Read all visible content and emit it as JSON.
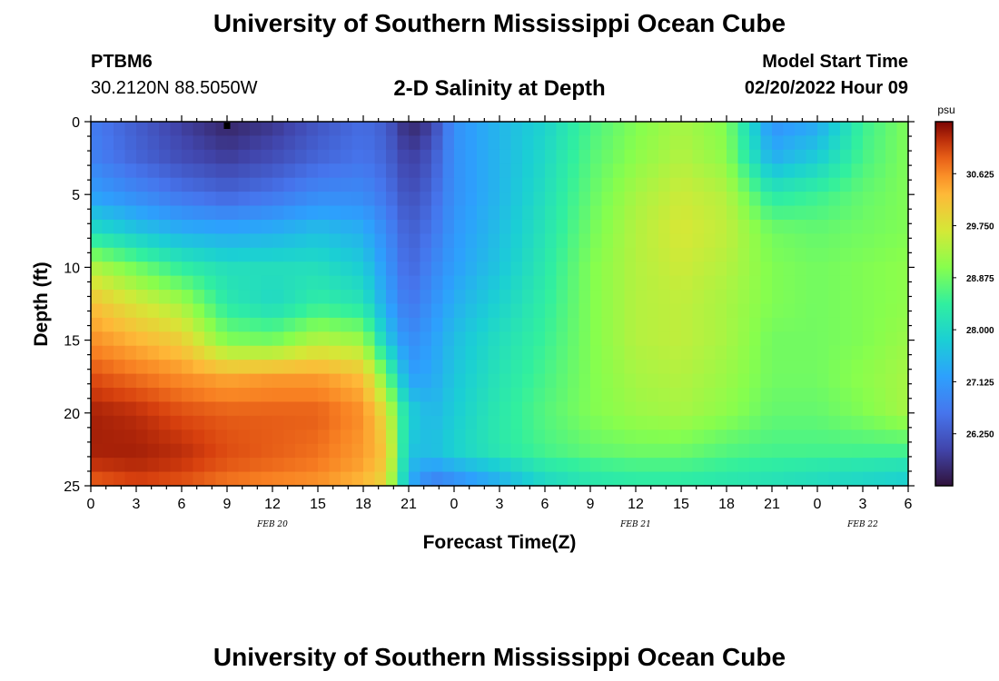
{
  "header": {
    "title": "University of Southern Mississippi Ocean Cube",
    "station_id": "PTBM6",
    "station_coords": "30.2120N  88.5050W",
    "chart_title": "2-D Salinity at Depth",
    "model_start_label": "Model Start Time",
    "model_start_value": "02/20/2022 Hour 09"
  },
  "footer": {
    "title": "University of Southern Mississippi Ocean Cube"
  },
  "chart_data": {
    "type": "heatmap",
    "title": "2-D Salinity at Depth",
    "xlabel": "Forecast Time(Z)",
    "ylabel": "Depth (ft)",
    "x_range_hours": [
      0,
      54
    ],
    "y_range": [
      0,
      25
    ],
    "x_ticks": [
      {
        "h": 0,
        "label": "0"
      },
      {
        "h": 3,
        "label": "3"
      },
      {
        "h": 6,
        "label": "6"
      },
      {
        "h": 9,
        "label": "9"
      },
      {
        "h": 12,
        "label": "12"
      },
      {
        "h": 15,
        "label": "15"
      },
      {
        "h": 18,
        "label": "18"
      },
      {
        "h": 21,
        "label": "21"
      },
      {
        "h": 24,
        "label": "0"
      },
      {
        "h": 27,
        "label": "3"
      },
      {
        "h": 30,
        "label": "6"
      },
      {
        "h": 33,
        "label": "9"
      },
      {
        "h": 36,
        "label": "12"
      },
      {
        "h": 39,
        "label": "15"
      },
      {
        "h": 42,
        "label": "18"
      },
      {
        "h": 45,
        "label": "21"
      },
      {
        "h": 48,
        "label": "0"
      },
      {
        "h": 51,
        "label": "3"
      },
      {
        "h": 54,
        "label": "6"
      }
    ],
    "date_labels": [
      {
        "h": 12,
        "label": "FEB 20"
      },
      {
        "h": 36,
        "label": "FEB 21"
      },
      {
        "h": 51,
        "label": "FEB 22"
      }
    ],
    "y_ticks": [
      0,
      5,
      10,
      15,
      20,
      25
    ],
    "marker": {
      "h": 9,
      "depth": 0
    },
    "colorbar": {
      "unit": "psu",
      "min": 25.375,
      "max": 31.5,
      "ticks": [
        "30.625",
        "29.750",
        "28.875",
        "28.000",
        "27.125",
        "26.250"
      ]
    },
    "salinity_psu": {
      "x_hours": [
        0,
        3,
        6,
        9,
        12,
        15,
        18,
        19.5,
        21,
        22.5,
        24,
        27,
        30,
        33,
        36,
        39,
        42,
        45,
        48,
        51,
        54
      ],
      "depths_ft": [
        0,
        2.5,
        5,
        7.5,
        10,
        12.5,
        15,
        17.5,
        20,
        22.5,
        24,
        25
      ],
      "rows": [
        [
          26.7,
          26.3,
          25.9,
          25.6,
          25.8,
          26.2,
          26.5,
          26.3,
          25.6,
          25.9,
          27.0,
          27.5,
          27.9,
          28.6,
          29.0,
          29.3,
          29.0,
          27.0,
          27.3,
          28.5,
          29.0
        ],
        [
          26.8,
          26.4,
          26.1,
          25.9,
          26.1,
          26.4,
          26.6,
          26.4,
          25.9,
          26.2,
          27.0,
          27.5,
          28.0,
          28.7,
          29.1,
          29.4,
          29.1,
          27.4,
          27.8,
          28.6,
          29.0
        ],
        [
          27.2,
          26.9,
          26.6,
          26.4,
          26.6,
          26.9,
          26.9,
          26.6,
          26.1,
          26.4,
          27.0,
          27.5,
          28.1,
          28.8,
          29.3,
          29.6,
          29.4,
          28.3,
          28.5,
          28.8,
          29.0
        ],
        [
          28.1,
          27.7,
          27.4,
          27.3,
          27.4,
          27.6,
          27.4,
          26.9,
          26.3,
          26.6,
          27.1,
          27.6,
          28.2,
          28.9,
          29.4,
          29.7,
          29.5,
          28.9,
          28.8,
          28.9,
          29.0
        ],
        [
          29.4,
          28.9,
          28.4,
          28.1,
          28.1,
          28.1,
          27.8,
          27.1,
          26.4,
          26.8,
          27.2,
          27.7,
          28.3,
          29.0,
          29.4,
          29.6,
          29.4,
          29.0,
          28.9,
          29.0,
          29.1
        ],
        [
          30.2,
          29.7,
          29.3,
          28.3,
          28.0,
          28.4,
          28.2,
          27.3,
          26.6,
          27.0,
          27.4,
          27.9,
          28.4,
          29.0,
          29.4,
          29.5,
          29.3,
          29.0,
          28.9,
          29.0,
          29.1
        ],
        [
          30.6,
          30.3,
          30.0,
          29.0,
          28.9,
          29.4,
          29.2,
          27.8,
          26.9,
          27.2,
          27.6,
          28.1,
          28.5,
          29.0,
          29.4,
          29.5,
          29.3,
          28.9,
          28.9,
          29.0,
          29.2
        ],
        [
          31.0,
          30.8,
          30.6,
          30.4,
          30.5,
          30.5,
          30.2,
          28.9,
          27.2,
          27.3,
          27.7,
          28.2,
          28.6,
          29.0,
          29.3,
          29.4,
          29.2,
          28.9,
          28.9,
          29.1,
          29.3
        ],
        [
          31.3,
          31.2,
          31.0,
          30.9,
          30.9,
          30.9,
          30.6,
          29.8,
          27.9,
          27.5,
          27.8,
          28.3,
          28.7,
          29.0,
          29.2,
          29.3,
          29.1,
          28.8,
          28.8,
          29.0,
          29.3
        ],
        [
          31.3,
          31.3,
          31.2,
          31.0,
          30.9,
          30.8,
          30.5,
          30.1,
          27.7,
          27.6,
          27.9,
          28.3,
          28.6,
          28.8,
          28.9,
          28.9,
          28.7,
          28.6,
          28.6,
          28.6,
          28.6
        ],
        [
          31.1,
          31.2,
          31.1,
          30.9,
          30.8,
          30.7,
          30.4,
          30.0,
          27.5,
          27.1,
          27.3,
          27.7,
          28.2,
          28.4,
          28.5,
          28.5,
          28.4,
          28.3,
          28.2,
          28.1,
          28.0
        ],
        [
          30.8,
          31.0,
          30.9,
          30.7,
          30.6,
          30.5,
          30.2,
          29.8,
          27.4,
          26.6,
          26.8,
          27.3,
          27.9,
          28.2,
          28.3,
          28.3,
          28.2,
          28.1,
          28.0,
          27.9,
          27.8
        ]
      ]
    }
  }
}
